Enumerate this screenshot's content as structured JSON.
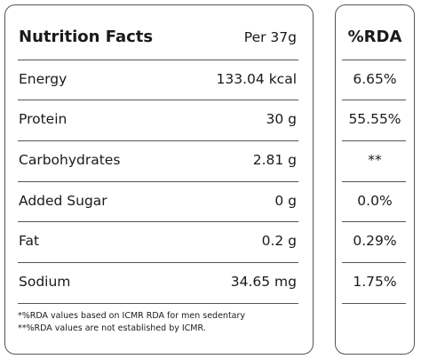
{
  "header": {
    "title": "Nutrition Facts",
    "serving": "Per 37g",
    "rda_title": "%RDA"
  },
  "rows": [
    {
      "nutrient": "Energy",
      "amount": "133.04 kcal",
      "rda": "6.65%"
    },
    {
      "nutrient": "Protein",
      "amount": "30 g",
      "rda": "55.55%"
    },
    {
      "nutrient": "Carbohydrates",
      "amount": "2.81 g",
      "rda": "**"
    },
    {
      "nutrient": "Added Sugar",
      "amount": "0 g",
      "rda": "0.0%"
    },
    {
      "nutrient": "Fat",
      "amount": "0.2 g",
      "rda": "0.29%"
    },
    {
      "nutrient": "Sodium",
      "amount": "34.65 mg",
      "rda": "1.75%"
    }
  ],
  "footnotes": [
    "*%RDA values based on ICMR RDA for men sedentary",
    "**%RDA values are not established by ICMR."
  ]
}
